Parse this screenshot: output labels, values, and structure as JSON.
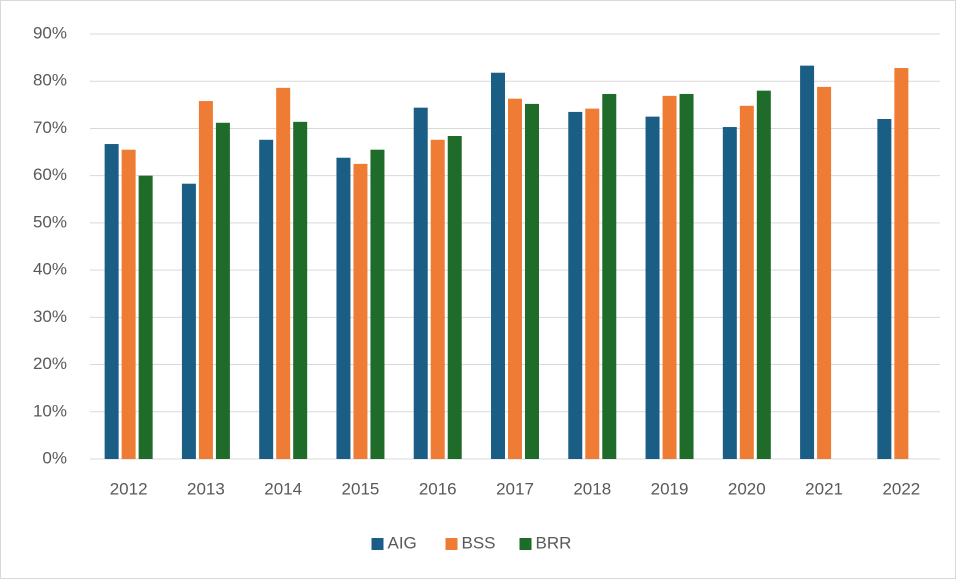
{
  "chart_data": {
    "type": "bar",
    "categories": [
      "2012",
      "2013",
      "2014",
      "2015",
      "2016",
      "2017",
      "2018",
      "2019",
      "2020",
      "2021",
      "2022"
    ],
    "series": [
      {
        "name": "AIG",
        "color": "#1b5e85",
        "values": [
          66.7,
          58.3,
          67.6,
          63.8,
          74.4,
          81.8,
          73.5,
          72.5,
          70.3,
          83.3,
          72.0
        ]
      },
      {
        "name": "BSS",
        "color": "#ee7c35",
        "values": [
          65.5,
          75.8,
          78.6,
          62.5,
          67.6,
          76.3,
          74.2,
          76.9,
          74.8,
          78.8,
          82.8
        ]
      },
      {
        "name": "BRR",
        "color": "#1e6b2a",
        "values": [
          60.0,
          71.2,
          71.4,
          65.5,
          68.4,
          75.2,
          77.3,
          77.3,
          78.0,
          null,
          null
        ]
      }
    ],
    "ylim": [
      0,
      90
    ],
    "yticks": [
      {
        "value": 0,
        "label": "0%"
      },
      {
        "value": 10,
        "label": "10%"
      },
      {
        "value": 20,
        "label": "20%"
      },
      {
        "value": 30,
        "label": "30%"
      },
      {
        "value": 40,
        "label": "40%"
      },
      {
        "value": 50,
        "label": "50%"
      },
      {
        "value": 60,
        "label": "60%"
      },
      {
        "value": 70,
        "label": "70%"
      },
      {
        "value": 80,
        "label": "80%"
      },
      {
        "value": 90,
        "label": "90%"
      }
    ],
    "grid": true,
    "legend": "bottom"
  }
}
